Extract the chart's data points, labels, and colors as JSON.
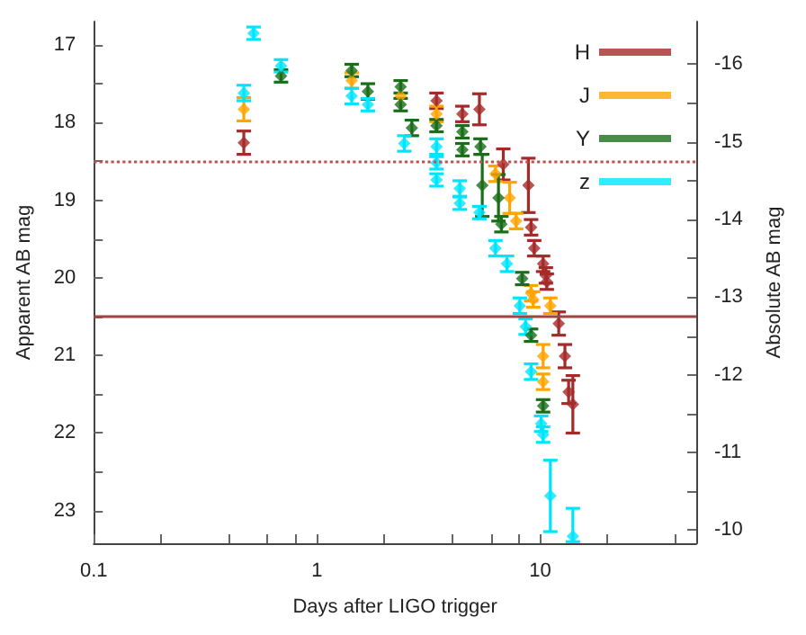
{
  "chart_data": {
    "type": "scatter",
    "xlabel": "Days after LIGO trigger",
    "ylabel": "Apparent AB mag",
    "y2label": "Absolute AB mag",
    "log": "x",
    "xlim": [
      0.1,
      50
    ],
    "xticks": [
      0.1,
      {
        "value": 0.2,
        "label": null
      },
      {
        "value": 0.4,
        "label": null
      },
      {
        "value": 0.6,
        "label": null
      },
      {
        "value": 0.8,
        "label": null
      },
      1,
      {
        "value": 2,
        "label": null
      },
      {
        "value": 4,
        "label": null
      },
      {
        "value": 6,
        "label": null
      },
      {
        "value": 8,
        "label": null
      },
      10,
      {
        "value": 20,
        "label": null
      },
      {
        "value": 40,
        "label": null
      }
    ],
    "ylim": [
      23.42,
      16.7
    ],
    "yticks": [
      17,
      {
        "value": 17.5,
        "label": null
      },
      18,
      {
        "value": 18.5,
        "label": null
      },
      19,
      {
        "value": 19.5,
        "label": null
      },
      20,
      {
        "value": 20.5,
        "label": null
      },
      21,
      {
        "value": 21.5,
        "label": null
      },
      22,
      {
        "value": 22.5,
        "label": null
      },
      23
    ],
    "y2lim": [
      -9.83,
      -16.55
    ],
    "y2ticks": [
      -16,
      {
        "value": -15.5,
        "label": null
      },
      -15,
      {
        "value": -14.5,
        "label": null
      },
      -14,
      {
        "value": -13.5,
        "label": null
      },
      -13,
      {
        "value": -12.5,
        "label": null
      },
      -12,
      {
        "value": -11.5,
        "label": null
      },
      -11,
      {
        "value": -10.5,
        "label": null
      },
      -10
    ],
    "grid": false,
    "legend": "top right",
    "marker": "diamond",
    "ref_lines": [
      {
        "axis": "y",
        "value": 18.5,
        "color": "#c0504d",
        "line_style": "dotted"
      },
      {
        "axis": "y",
        "value": 20.5,
        "color": "#a0443f",
        "line_style": "solid"
      }
    ],
    "series": [
      {
        "name": "H",
        "color": "#a52a2a",
        "x": [
          0.47,
          3.43,
          4.48,
          5.34,
          6.83,
          8.85,
          9.1,
          9.4,
          10.3,
          10.6,
          10.7,
          12.1,
          12.9,
          13.4,
          14.0
        ],
        "values": [
          18.26,
          17.72,
          17.89,
          17.83,
          18.54,
          18.81,
          19.35,
          19.62,
          19.82,
          19.97,
          20.05,
          20.59,
          21.01,
          21.47,
          21.63
        ],
        "errors": [
          0.15,
          0.1,
          0.1,
          0.2,
          0.2,
          0.35,
          0.1,
          0.1,
          0.1,
          0.1,
          0.1,
          0.15,
          0.15,
          0.15,
          0.37
        ]
      },
      {
        "name": "J",
        "color": "#ffa500",
        "x": [
          0.47,
          1.43,
          2.37,
          3.43,
          6.3,
          7.3,
          7.8,
          9.1,
          9.3,
          11.1,
          10.3,
          10.3
        ],
        "values": [
          17.83,
          17.46,
          17.66,
          17.89,
          18.66,
          18.97,
          19.27,
          20.2,
          20.28,
          20.36,
          21.01,
          21.34
        ],
        "errors": [
          0.15,
          0.1,
          null,
          0.1,
          0.1,
          0.2,
          0.1,
          0.1,
          0.1,
          0.1,
          0.15,
          0.1
        ]
      },
      {
        "name": "Y",
        "color": "#1a6e1a",
        "x": [
          0.69,
          1.43,
          1.69,
          2.37,
          2.37,
          2.66,
          3.43,
          4.48,
          4.48,
          5.4,
          5.5,
          6.5,
          6.7,
          8.3,
          9.1,
          10.3
        ],
        "values": [
          17.4,
          17.33,
          17.6,
          17.54,
          17.77,
          18.07,
          18.04,
          18.12,
          18.35,
          18.31,
          18.81,
          18.97,
          19.31,
          20.01,
          20.74,
          21.65
        ],
        "errors": [
          0.08,
          0.08,
          0.1,
          0.08,
          0.08,
          0.1,
          0.08,
          0.08,
          0.08,
          0.1,
          0.4,
          0.3,
          0.1,
          0.08,
          0.08,
          0.08
        ]
      },
      {
        "name": "z",
        "color": "#00e5ff",
        "x": [
          0.47,
          0.52,
          0.69,
          1.43,
          1.69,
          2.46,
          3.43,
          3.43,
          3.43,
          4.36,
          4.36,
          5.34,
          6.3,
          7.1,
          8.1,
          8.6,
          9.1,
          10.1,
          10.3,
          11.1,
          14.0
        ],
        "values": [
          17.62,
          16.85,
          17.27,
          17.66,
          17.77,
          18.27,
          18.31,
          18.52,
          18.74,
          18.85,
          19.04,
          19.16,
          19.62,
          19.82,
          20.36,
          20.63,
          21.21,
          21.88,
          22.02,
          22.81,
          23.33
        ],
        "errors": [
          0.1,
          0.08,
          0.08,
          0.1,
          0.08,
          0.1,
          0.1,
          0.08,
          0.08,
          0.1,
          0.08,
          0.08,
          0.1,
          0.1,
          0.1,
          0.1,
          0.1,
          0.1,
          0.1,
          0.46,
          [
            22.97,
            23.4
          ]
        ]
      }
    ]
  }
}
